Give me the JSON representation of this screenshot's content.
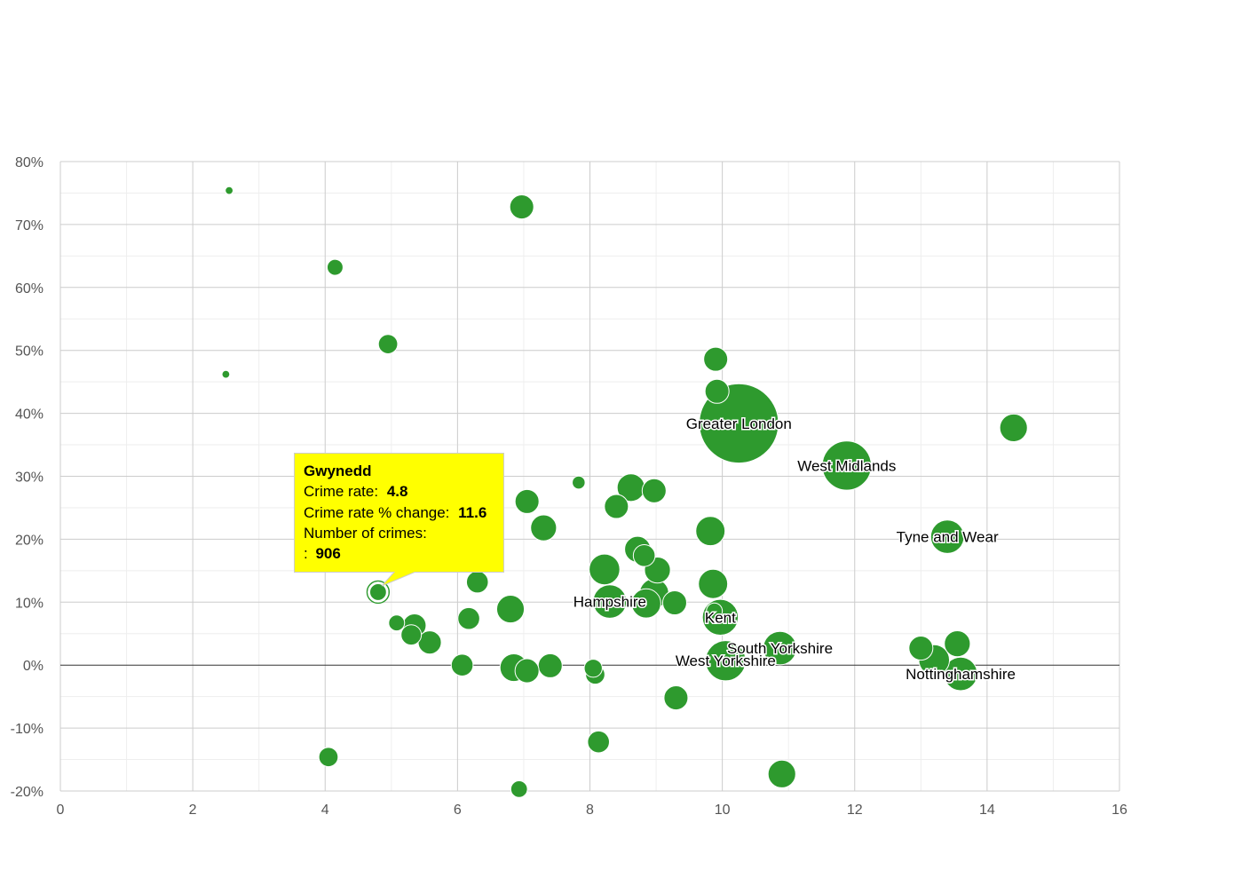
{
  "colors": {
    "bubble_fill": "#2e9a2e",
    "bubble_stroke": "#ffffff",
    "grid_major": "#cccccc",
    "grid_minor": "#eeeeee",
    "zero_line": "#333333",
    "tooltip_bg": "#ffff00",
    "tooltip_border": "#cccccc"
  },
  "chart_data": {
    "type": "scatter",
    "variant": "bubble",
    "title": "",
    "xlabel": "",
    "ylabel": "",
    "xlim": [
      0,
      16
    ],
    "ylim": [
      -20,
      80
    ],
    "x_ticks": [
      0,
      2,
      4,
      6,
      8,
      10,
      12,
      14,
      16
    ],
    "y_ticks": [
      -20,
      -10,
      0,
      10,
      20,
      30,
      40,
      50,
      60,
      70,
      80
    ],
    "y_tick_suffix": "%",
    "grid": true,
    "points": [
      {
        "x": 2.55,
        "y": 75.4,
        "z": 1
      },
      {
        "x": 6.97,
        "y": 72.8,
        "z": 3
      },
      {
        "x": 4.15,
        "y": 63.2,
        "z": 1.5
      },
      {
        "x": 4.95,
        "y": 51.0,
        "z": 2
      },
      {
        "x": 2.5,
        "y": 46.2,
        "z": 1
      },
      {
        "x": 9.9,
        "y": 48.6,
        "z": 3
      },
      {
        "x": 9.92,
        "y": 43.5,
        "z": 3
      },
      {
        "x": 10.25,
        "y": 38.4,
        "z": 40,
        "label": "Greater London"
      },
      {
        "x": 11.88,
        "y": 31.7,
        "z": 14,
        "label": "West Midlands"
      },
      {
        "x": 14.4,
        "y": 37.7,
        "z": 4
      },
      {
        "x": 7.83,
        "y": 29.0,
        "z": 1.2
      },
      {
        "x": 8.62,
        "y": 28.2,
        "z": 4
      },
      {
        "x": 8.97,
        "y": 27.7,
        "z": 3
      },
      {
        "x": 7.05,
        "y": 26.0,
        "z": 3
      },
      {
        "x": 8.4,
        "y": 25.2,
        "z": 3
      },
      {
        "x": 7.3,
        "y": 21.8,
        "z": 3.5
      },
      {
        "x": 9.82,
        "y": 21.3,
        "z": 4.5
      },
      {
        "x": 13.4,
        "y": 20.4,
        "z": 6,
        "label": "Tyne and Wear"
      },
      {
        "x": 8.72,
        "y": 18.4,
        "z": 3.5
      },
      {
        "x": 8.82,
        "y": 17.4,
        "z": 2.5
      },
      {
        "x": 8.22,
        "y": 15.2,
        "z": 5
      },
      {
        "x": 9.02,
        "y": 15.1,
        "z": 3.5
      },
      {
        "x": 6.3,
        "y": 13.2,
        "z": 2.5
      },
      {
        "x": 9.86,
        "y": 12.9,
        "z": 4.5
      },
      {
        "x": 8.97,
        "y": 11.4,
        "z": 4.5
      },
      {
        "x": 4.8,
        "y": 11.6,
        "z": 1.6,
        "label": "Gwynedd",
        "crimes": "906",
        "crimes_label": ":"
      },
      {
        "x": 8.3,
        "y": 10.1,
        "z": 6,
        "label": "Hampshire"
      },
      {
        "x": 8.85,
        "y": 9.8,
        "z": 4.5
      },
      {
        "x": 9.28,
        "y": 9.9,
        "z": 3
      },
      {
        "x": 6.8,
        "y": 8.9,
        "z": 4
      },
      {
        "x": 9.88,
        "y": 8.6,
        "z": 1.5
      },
      {
        "x": 9.97,
        "y": 7.6,
        "z": 7,
        "label": "Kent"
      },
      {
        "x": 6.17,
        "y": 7.4,
        "z": 2.5
      },
      {
        "x": 5.08,
        "y": 6.7,
        "z": 1.5
      },
      {
        "x": 5.35,
        "y": 6.3,
        "z": 2.8
      },
      {
        "x": 5.3,
        "y": 4.8,
        "z": 2.2
      },
      {
        "x": 5.58,
        "y": 3.6,
        "z": 2.8
      },
      {
        "x": 13.55,
        "y": 3.4,
        "z": 3.5
      },
      {
        "x": 13.0,
        "y": 2.7,
        "z": 3
      },
      {
        "x": 10.87,
        "y": 2.7,
        "z": 6,
        "label": "South Yorkshire"
      },
      {
        "x": 13.2,
        "y": 0.8,
        "z": 5
      },
      {
        "x": 10.05,
        "y": 0.7,
        "z": 9,
        "label": "West Yorkshire"
      },
      {
        "x": 6.07,
        "y": 0.0,
        "z": 2.5
      },
      {
        "x": 7.4,
        "y": -0.1,
        "z": 3
      },
      {
        "x": 6.85,
        "y": -0.4,
        "z": 4
      },
      {
        "x": 7.05,
        "y": -0.9,
        "z": 3
      },
      {
        "x": 8.05,
        "y": -0.5,
        "z": 1.8
      },
      {
        "x": 8.08,
        "y": -1.5,
        "z": 2
      },
      {
        "x": 13.6,
        "y": -1.4,
        "z": 6,
        "label": "Nottinghamshire"
      },
      {
        "x": 9.3,
        "y": -5.2,
        "z": 3
      },
      {
        "x": 8.13,
        "y": -12.2,
        "z": 2.5
      },
      {
        "x": 4.05,
        "y": -14.6,
        "z": 2
      },
      {
        "x": 10.9,
        "y": -17.3,
        "z": 4
      },
      {
        "x": 6.93,
        "y": -19.7,
        "z": 1.6
      }
    ]
  },
  "tooltip": {
    "title": "Gwynedd",
    "crime_rate_label": "Crime rate:",
    "crime_rate_value": "4.8",
    "change_label": "Crime rate % change:",
    "change_value": "11.6",
    "crimes_label": "Number of crimes:",
    "crimes_prefix": ":",
    "crimes_value": "906"
  }
}
